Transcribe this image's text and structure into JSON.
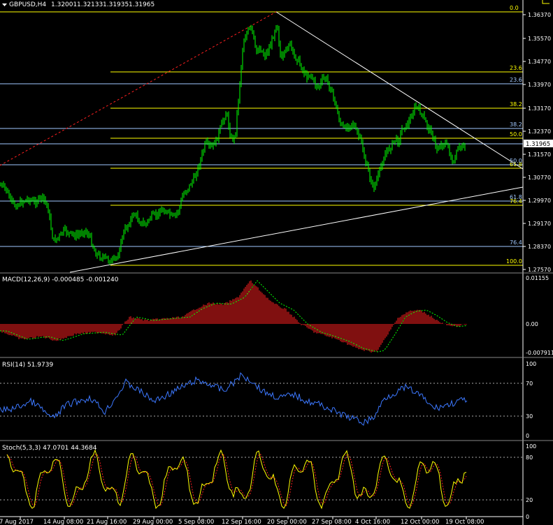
{
  "symbol_header": {
    "symbol": "GBPUSD,H4",
    "open": "1.32001",
    "high": "1.32133",
    "low": "1.31935",
    "close": "1.31965"
  },
  "main_axis": [
    "1.36370",
    "1.35570",
    "1.34770",
    "1.33970",
    "1.33170",
    "1.32370",
    "1.31570",
    "1.30770",
    "1.29970",
    "1.29170",
    "1.28370",
    "1.27570"
  ],
  "current_price_label": "1.31965",
  "fib_yellow_levels": [
    "0.0",
    "23.6",
    "38.2",
    "50.0",
    "61.8",
    "76.4",
    "100.0"
  ],
  "fib_blue_levels": [
    "23.6",
    "38.2",
    "50.0",
    "61.8",
    "76.4"
  ],
  "macd": {
    "title": "MACD(12,26,9) -0.000485 -0.001240",
    "axis": [
      "0.01155",
      "0.00",
      "-0.007911"
    ]
  },
  "rsi": {
    "title": "RSI(14) 51.9739",
    "axis": [
      "100",
      "70",
      "30",
      "0"
    ]
  },
  "stoch": {
    "title": "Stoch(5,3,3) 47.0701 44.3684",
    "axis": [
      "100",
      "80",
      "20",
      "0"
    ]
  },
  "time_axis": [
    "7 Aug 2017",
    "14 Aug 08:00",
    "21 Aug 16:00",
    "29 Aug 00:00",
    "5 Sep 08:00",
    "12 Sep 16:00",
    "20 Sep 00:00",
    "27 Sep 08:00",
    "4 Oct 16:00",
    "12 Oct 00:00",
    "19 Oct 08:00"
  ],
  "colors": {
    "background": "#000000",
    "candles": "#00ff00",
    "fib_yellow": "#ffff00",
    "fib_blue": "#a0c8ff",
    "trendline": "#ffffff",
    "fib_base_line": "#ff2020",
    "macd_hist": "#ff2020",
    "macd_signal": "#00ff00",
    "rsi_line": "#3c78ff",
    "stoch_main": "#ffff00",
    "stoch_signal": "#ff2020"
  }
}
